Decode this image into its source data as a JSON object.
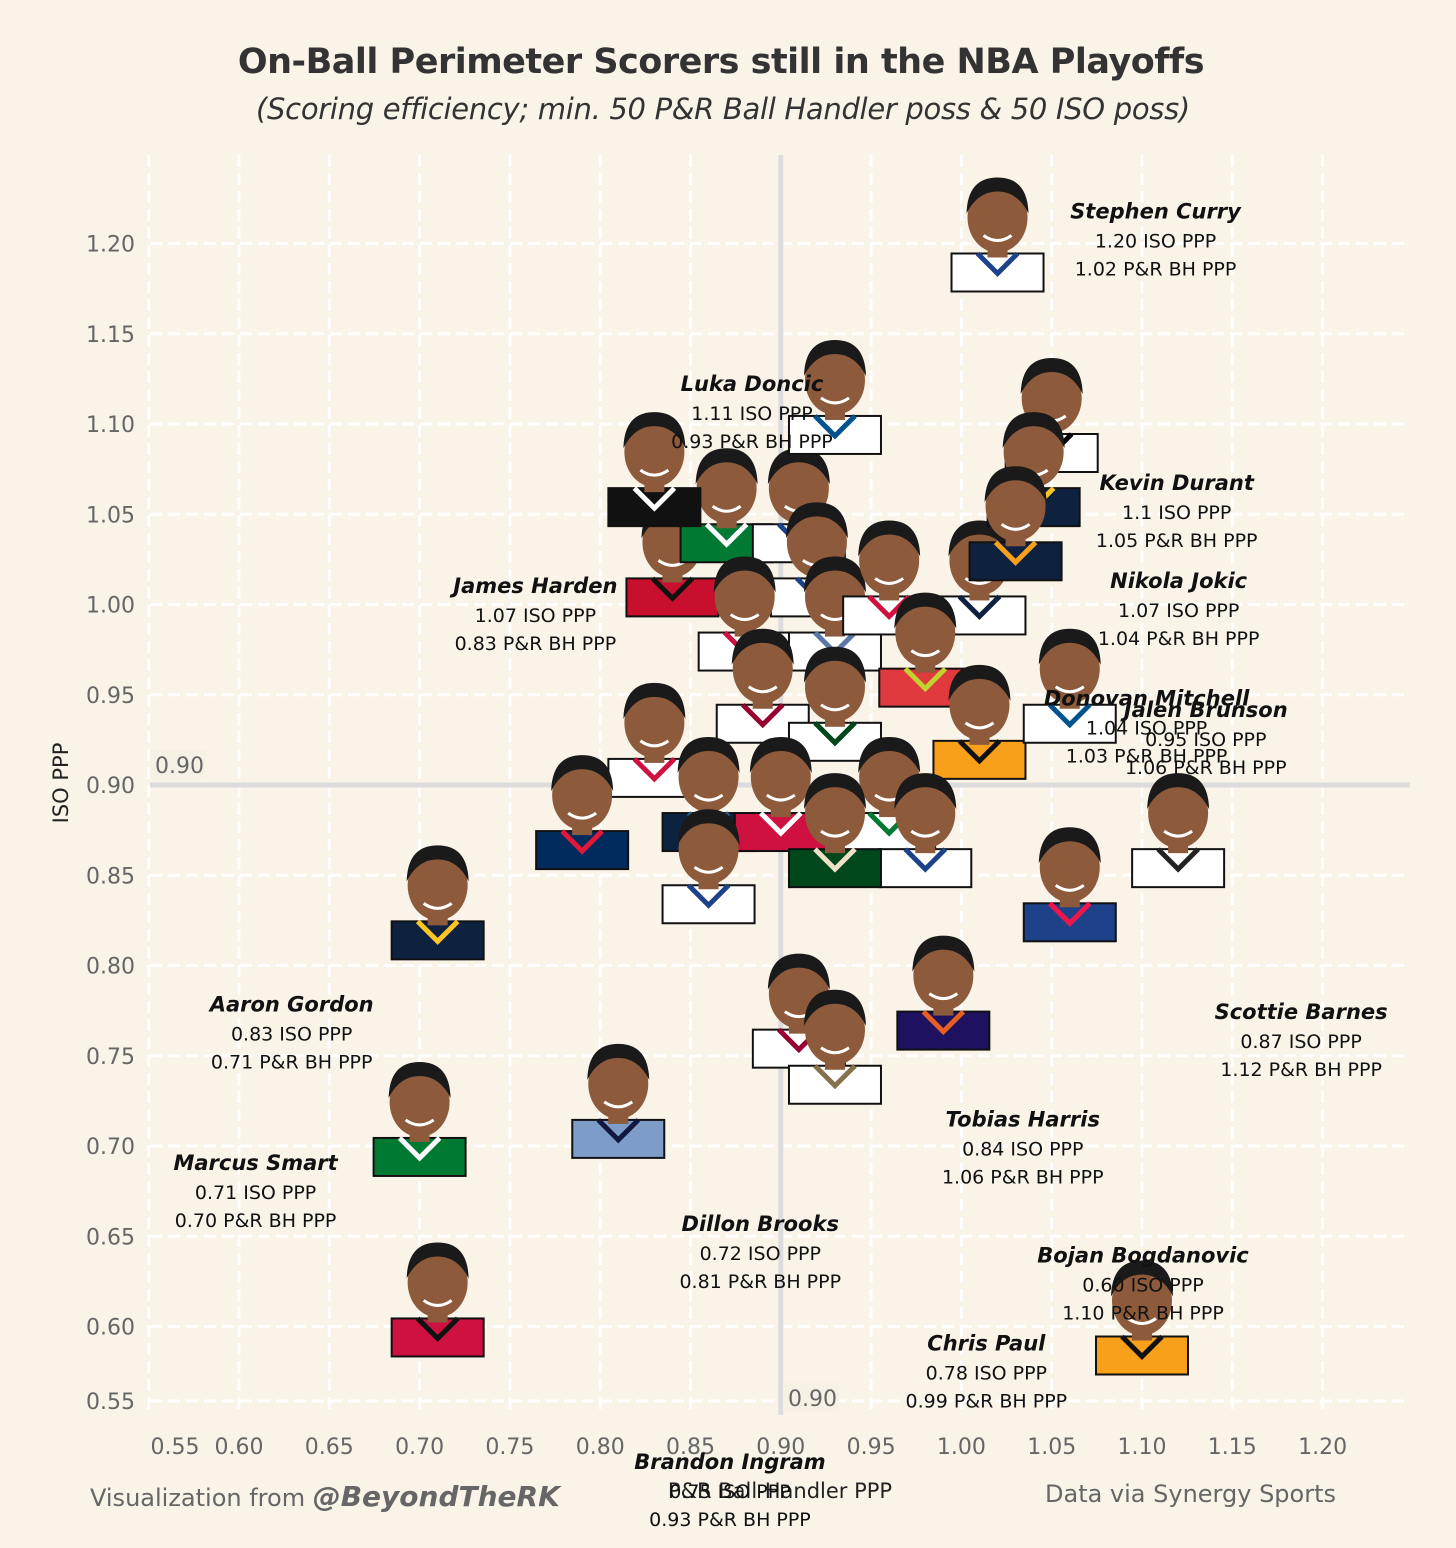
{
  "chart_data": {
    "type": "scatter",
    "title": "On-Ball Perimeter Scorers still in the NBA Playoffs",
    "subtitle": "(Scoring efficiency; min. 50 P&R Ball Handler poss & 50 ISO poss)",
    "xlabel": "P&R Ball-Handler PPP",
    "ylabel": "ISO PPP",
    "xlim": [
      0.55,
      1.2
    ],
    "ylim": [
      0.55,
      1.2
    ],
    "x_ticks": [
      "0.55",
      "0.60",
      "0.65",
      "0.70",
      "0.75",
      "0.80",
      "0.85",
      "0.90",
      "0.95",
      "1.00",
      "1.05",
      "1.10",
      "1.15",
      "1.20"
    ],
    "y_ticks": [
      "0.55",
      "0.60",
      "0.65",
      "0.70",
      "0.75",
      "0.80",
      "0.85",
      "0.90",
      "0.95",
      "1.00",
      "1.05",
      "1.10",
      "1.15",
      "1.20"
    ],
    "grid": true,
    "reference_lines": {
      "x": 0.9,
      "y": 0.9,
      "x_label": "0.90",
      "y_label": "0.90"
    },
    "labeled_points": [
      {
        "name": "Stephen Curry",
        "x": 1.02,
        "y": 1.2,
        "iso_label": "1.20 ISO PPP",
        "pnr_label": "1.02 P&R BH PPP",
        "jersey": "#ffffff",
        "trim": "#1d428a"
      },
      {
        "name": "Luka Doncic",
        "x": 0.93,
        "y": 1.11,
        "iso_label": "1.11 ISO PPP",
        "pnr_label": "0.93 P&R BH PPP",
        "jersey": "#ffffff",
        "trim": "#00538c"
      },
      {
        "name": "Kevin Durant",
        "x": 1.05,
        "y": 1.1,
        "iso_label": "1.1 ISO PPP",
        "pnr_label": "1.05 P&R BH PPP",
        "jersey": "#ffffff",
        "trim": "#000000"
      },
      {
        "name": "James Harden",
        "x": 0.83,
        "y": 1.07,
        "iso_label": "1.07 ISO PPP",
        "pnr_label": "0.83 P&R BH PPP",
        "jersey": "#111111",
        "trim": "#ffffff"
      },
      {
        "name": "Nikola Jokic",
        "x": 1.04,
        "y": 1.07,
        "iso_label": "1.07 ISO PPP",
        "pnr_label": "1.04 P&R BH PPP",
        "jersey": "#0e2240",
        "trim": "#fec524"
      },
      {
        "name": "Donovan Mitchell",
        "x": 1.03,
        "y": 1.04,
        "iso_label": "1.04 ISO PPP",
        "pnr_label": "1.03 P&R BH PPP",
        "jersey": "#0e2240",
        "trim": "#f9a01b"
      },
      {
        "name": "Jalen Brunson",
        "x": 1.06,
        "y": 0.95,
        "iso_label": "0.95 ISO PPP",
        "pnr_label": "1.06 P&R BH PPP",
        "jersey": "#ffffff",
        "trim": "#00538c"
      },
      {
        "name": "Aaron Gordon",
        "x": 0.71,
        "y": 0.83,
        "iso_label": "0.83 ISO PPP",
        "pnr_label": "0.71 P&R BH PPP",
        "jersey": "#0e2240",
        "trim": "#fec524"
      },
      {
        "name": "Scottie Barnes",
        "x": 1.12,
        "y": 0.87,
        "iso_label": "0.87 ISO PPP",
        "pnr_label": "1.12 P&R BH PPP",
        "jersey": "#ffffff",
        "trim": "#222222"
      },
      {
        "name": "Tobias Harris",
        "x": 1.06,
        "y": 0.84,
        "iso_label": "0.84 ISO PPP",
        "pnr_label": "1.06 P&R BH PPP",
        "jersey": "#1d428a",
        "trim": "#ed174c"
      },
      {
        "name": "Chris Paul",
        "x": 0.99,
        "y": 0.78,
        "iso_label": "0.78 ISO PPP",
        "pnr_label": "0.99 P&R BH PPP",
        "jersey": "#1d1160",
        "trim": "#e56020"
      },
      {
        "name": "Marcus Smart",
        "x": 0.7,
        "y": 0.71,
        "iso_label": "0.71 ISO PPP",
        "pnr_label": "0.70 P&R BH PPP",
        "jersey": "#007a33",
        "trim": "#ffffff"
      },
      {
        "name": "Dillon Brooks",
        "x": 0.81,
        "y": 0.72,
        "iso_label": "0.72 ISO PPP",
        "pnr_label": "0.81 P&R BH PPP",
        "jersey": "#7d9cc8",
        "trim": "#12173f"
      },
      {
        "name": "Brandon Ingram",
        "x": 0.93,
        "y": 0.75,
        "iso_label": "0.75 ISO PPP",
        "pnr_label": "0.93 P&R BH PPP",
        "jersey": "#ffffff",
        "trim": "#85714d"
      },
      {
        "name": "Bojan Bogdanovic",
        "x": 1.1,
        "y": 0.6,
        "iso_label": "0.60 ISO PPP",
        "pnr_label": "1.10 P&R BH PPP",
        "jersey": "#f9a01b",
        "trim": "#111111"
      }
    ],
    "unlabeled_points": [
      {
        "x": 0.71,
        "y": 0.61,
        "jersey": "#ce1141",
        "trim": "#111111"
      },
      {
        "x": 0.84,
        "y": 1.02,
        "jersey": "#c8102e",
        "trim": "#111111"
      },
      {
        "x": 0.87,
        "y": 1.05,
        "jersey": "#007a33",
        "trim": "#ffffff"
      },
      {
        "x": 0.91,
        "y": 1.05,
        "jersey": "#ffffff",
        "trim": "#1d428a"
      },
      {
        "x": 0.92,
        "y": 1.02,
        "jersey": "#ffffff",
        "trim": "#1d428a"
      },
      {
        "x": 0.88,
        "y": 0.99,
        "jersey": "#ffffff",
        "trim": "#ce1141"
      },
      {
        "x": 0.93,
        "y": 0.99,
        "jersey": "#ffffff",
        "trim": "#5d76a9"
      },
      {
        "x": 0.96,
        "y": 1.01,
        "jersey": "#ffffff",
        "trim": "#ce1141"
      },
      {
        "x": 1.01,
        "y": 1.01,
        "jersey": "#ffffff",
        "trim": "#0e2240"
      },
      {
        "x": 0.98,
        "y": 0.97,
        "jersey": "#e03a3e",
        "trim": "#c1d32f"
      },
      {
        "x": 1.01,
        "y": 0.93,
        "jersey": "#f9a01b",
        "trim": "#111111"
      },
      {
        "x": 0.83,
        "y": 0.92,
        "jersey": "#ffffff",
        "trim": "#ce1141"
      },
      {
        "x": 0.89,
        "y": 0.95,
        "jersey": "#ffffff",
        "trim": "#98002e"
      },
      {
        "x": 0.93,
        "y": 0.94,
        "jersey": "#ffffff",
        "trim": "#00471b"
      },
      {
        "x": 0.86,
        "y": 0.89,
        "jersey": "#0c2340",
        "trim": "#236192"
      },
      {
        "x": 0.9,
        "y": 0.89,
        "jersey": "#ce1141",
        "trim": "#ffffff"
      },
      {
        "x": 0.96,
        "y": 0.89,
        "jersey": "#ffffff",
        "trim": "#007a33"
      },
      {
        "x": 0.98,
        "y": 0.87,
        "jersey": "#ffffff",
        "trim": "#1d428a"
      },
      {
        "x": 0.79,
        "y": 0.88,
        "jersey": "#002b5c",
        "trim": "#e31837"
      },
      {
        "x": 0.86,
        "y": 0.85,
        "jersey": "#ffffff",
        "trim": "#1d428a"
      },
      {
        "x": 0.93,
        "y": 0.87,
        "jersey": "#00471b",
        "trim": "#eee1c6"
      },
      {
        "x": 0.91,
        "y": 0.77,
        "jersey": "#ffffff",
        "trim": "#98002e"
      }
    ]
  },
  "footer": {
    "left_prefix": "Visualization from ",
    "left_handle": "@BeyondTheRK",
    "right": "Data via Synergy Sports"
  },
  "colors": {
    "background": "#faf3e7",
    "grid": "#ffffff",
    "reference_line": "#dcdcdc",
    "text": "#333333",
    "muted_text": "#666666",
    "skin": "#8d5a3b",
    "hair": "#1a1a1a"
  }
}
